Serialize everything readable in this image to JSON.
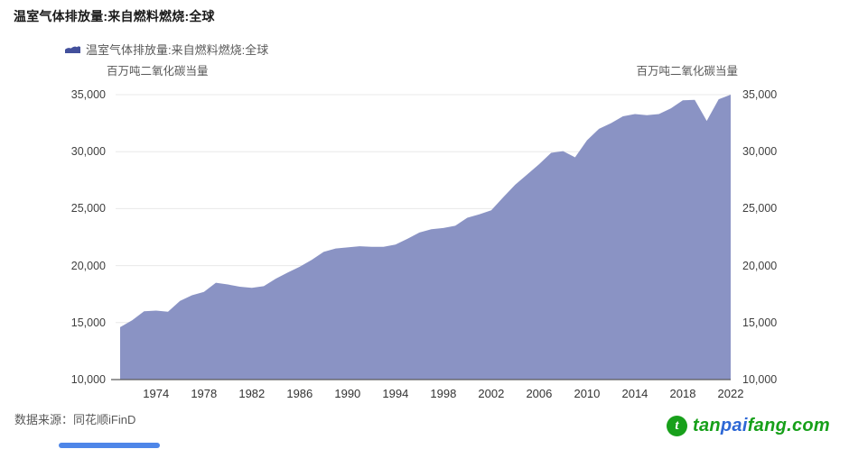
{
  "header": {
    "title": "温室气体排放量:来自燃料燃烧:全球"
  },
  "chart_data": {
    "type": "area",
    "title": "温室气体排放量:来自燃料燃烧:全球",
    "legend": "温室气体排放量:来自燃料燃烧:全球",
    "unit_label": "百万吨二氧化碳当量",
    "xlabel": "",
    "ylabel": "百万吨二氧化碳当量",
    "xlim": [
      1971,
      2022
    ],
    "ylim": [
      10000,
      35000
    ],
    "grid": "horizontal",
    "legend_position": "top-left",
    "x": [
      1971,
      1972,
      1973,
      1974,
      1975,
      1976,
      1977,
      1978,
      1979,
      1980,
      1981,
      1982,
      1983,
      1984,
      1985,
      1986,
      1987,
      1988,
      1989,
      1990,
      1991,
      1992,
      1993,
      1994,
      1995,
      1996,
      1997,
      1998,
      1999,
      2000,
      2001,
      2002,
      2003,
      2004,
      2005,
      2006,
      2007,
      2008,
      2009,
      2010,
      2011,
      2012,
      2013,
      2014,
      2015,
      2016,
      2017,
      2018,
      2019,
      2020,
      2021,
      2022
    ],
    "values": [
      14600,
      15200,
      16000,
      16050,
      15950,
      16900,
      17400,
      17700,
      18500,
      18350,
      18150,
      18050,
      18200,
      18850,
      19400,
      19900,
      20500,
      21200,
      21500,
      21600,
      21700,
      21650,
      21650,
      21850,
      22350,
      22900,
      23200,
      23300,
      23500,
      24200,
      24500,
      24850,
      26000,
      27100,
      28000,
      28900,
      29900,
      30050,
      29500,
      31000,
      32000,
      32500,
      33100,
      33300,
      33200,
      33300,
      33800,
      34500,
      34550,
      32700,
      34600,
      35000
    ],
    "xticks": [
      1974,
      1978,
      1982,
      1986,
      1990,
      1994,
      1998,
      2002,
      2006,
      2010,
      2014,
      2018,
      2022
    ],
    "yticks": [
      10000,
      15000,
      20000,
      25000,
      30000,
      35000
    ],
    "colors": {
      "area_fill": "#8a93c4",
      "legend_icon": "#43509c",
      "gridline": "#e8e8e8",
      "axis_line": "#5a5a5a"
    }
  },
  "footer": {
    "source_label": "数据来源：同花顺iFinD"
  },
  "logo": {
    "icon_glyph": "t",
    "icon_color": "#18a01b",
    "parts": [
      {
        "text": "tan",
        "color": "#17a01a"
      },
      {
        "text": "pai",
        "color": "#2e68d5"
      },
      {
        "text": "fang",
        "color": "#17a01a"
      },
      {
        "text": ".com",
        "color": "#17a01a"
      }
    ]
  },
  "ui": {
    "scrollbar_color": "#4e86e8"
  }
}
